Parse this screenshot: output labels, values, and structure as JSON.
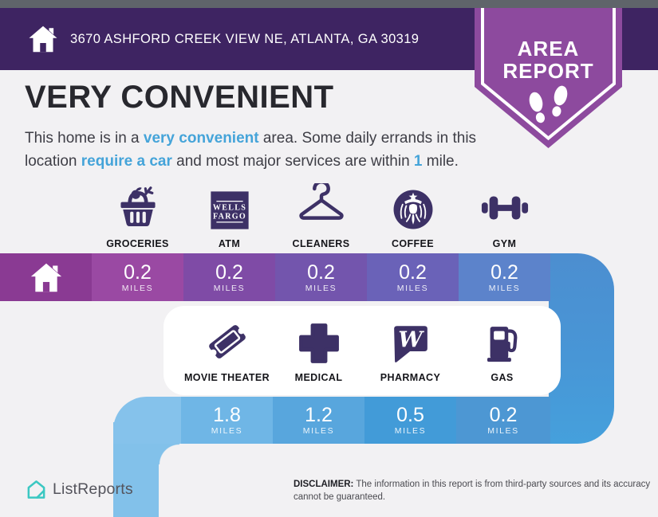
{
  "colors": {
    "page_bg": "#f2f1f3",
    "top_strip": "#5f646a",
    "header_bg": "#3e2462",
    "badge_bg": "#8d4a9e",
    "accent_blue": "#45a4d9",
    "icon_dark": "#3d3166",
    "banner1_home": "#8a3a93",
    "banner1_segments": [
      "#9a49a3",
      "#7f4ba6",
      "#7355ad",
      "#6a62b8",
      "#5c83cb",
      "#4c8ed0"
    ],
    "banner2_segments": [
      "#85c2eb",
      "#6fb6e6",
      "#58a6dd",
      "#429bd8",
      "#4d97d3"
    ],
    "descender": "#82c1ea",
    "brand_teal": "#3bc8c2"
  },
  "header": {
    "address": "3670 ASHFORD CREEK VIEW NE, ATLANTA, GA 30319",
    "badge": {
      "line1": "AREA",
      "line2": "REPORT"
    }
  },
  "hero": {
    "title": "VERY CONVENIENT",
    "description_lines": [
      [
        {
          "text": "This home is in a ",
          "accent": false
        },
        {
          "text": "very convenient",
          "accent": true
        },
        {
          "text": " area. Some daily errands in this",
          "accent": false
        }
      ],
      [
        {
          "text": "location ",
          "accent": false
        },
        {
          "text": "require a car",
          "accent": true
        },
        {
          "text": " and most major services are within ",
          "accent": false
        },
        {
          "text": "1",
          "accent": true
        },
        {
          "text": " mile.",
          "accent": false
        }
      ]
    ]
  },
  "row1": {
    "items": [
      {
        "label": "GROCERIES",
        "icon": "groceries-basket-icon",
        "distance": "0.2",
        "unit": "MILES"
      },
      {
        "label": "ATM",
        "icon": "wells-fargo-logo",
        "icon_text": [
          "WELLS",
          "FARGO"
        ],
        "distance": "0.2",
        "unit": "MILES"
      },
      {
        "label": "CLEANERS",
        "icon": "hanger-icon",
        "distance": "0.2",
        "unit": "MILES"
      },
      {
        "label": "COFFEE",
        "icon": "starbucks-logo",
        "distance": "0.2",
        "unit": "MILES"
      },
      {
        "label": "GYM",
        "icon": "dumbbell-icon",
        "distance": "0.2",
        "unit": "MILES"
      }
    ]
  },
  "row2": {
    "items": [
      {
        "label": "MOVIE THEATER",
        "icon": "ticket-icon",
        "distance": "1.8",
        "unit": "MILES"
      },
      {
        "label": "MEDICAL",
        "icon": "medical-cross-icon",
        "distance": "1.2",
        "unit": "MILES"
      },
      {
        "label": "PHARMACY",
        "icon": "walgreens-logo",
        "icon_text": [
          "W"
        ],
        "distance": "0.5",
        "unit": "MILES"
      },
      {
        "label": "GAS",
        "icon": "gas-pump-icon",
        "distance": "0.2",
        "unit": "MILES"
      }
    ]
  },
  "footer": {
    "brand": "ListReports",
    "disclaimer_label": "DISCLAIMER:",
    "disclaimer_text": " The information in this report is from third-party sources and its accuracy cannot be guaranteed."
  }
}
